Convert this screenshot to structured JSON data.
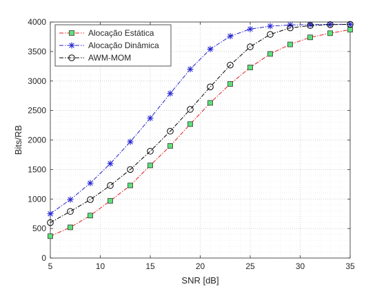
{
  "chart_data": {
    "type": "line",
    "title": "",
    "xlabel": "SNR [dB]",
    "ylabel": "Bits/RB",
    "xlim": [
      5,
      35
    ],
    "ylim": [
      0,
      4000
    ],
    "x_ticks": [
      5,
      10,
      15,
      20,
      25,
      30,
      35
    ],
    "y_ticks": [
      0,
      500,
      1000,
      1500,
      2000,
      2500,
      3000,
      3500,
      4000
    ],
    "grid": "major and minor (dotted)",
    "legend_position": "top-left",
    "x": [
      5,
      7,
      9,
      11,
      13,
      15,
      17,
      19,
      21,
      23,
      25,
      27,
      29,
      31,
      33,
      35
    ],
    "series": [
      {
        "name": "Alocação Estática",
        "color": "#e41a1c",
        "line_style": "dash-dot",
        "marker": "square",
        "marker_fill": "#5ee07a",
        "values": [
          370,
          520,
          720,
          970,
          1230,
          1570,
          1900,
          2270,
          2630,
          2950,
          3230,
          3460,
          3620,
          3740,
          3810,
          3870
        ]
      },
      {
        "name": "Alocação Dinâmica",
        "color": "#2020d0",
        "line_style": "dash-dot",
        "marker": "asterisk",
        "values": [
          750,
          990,
          1270,
          1600,
          1970,
          2370,
          2790,
          3200,
          3540,
          3760,
          3880,
          3930,
          3950,
          3955,
          3960,
          3960
        ]
      },
      {
        "name": "AWM-MOM",
        "color": "#000000",
        "line_style": "dash-dot",
        "marker": "circle",
        "values": [
          600,
          790,
          990,
          1230,
          1500,
          1810,
          2150,
          2520,
          2900,
          3270,
          3580,
          3790,
          3900,
          3940,
          3955,
          3960
        ]
      }
    ]
  }
}
